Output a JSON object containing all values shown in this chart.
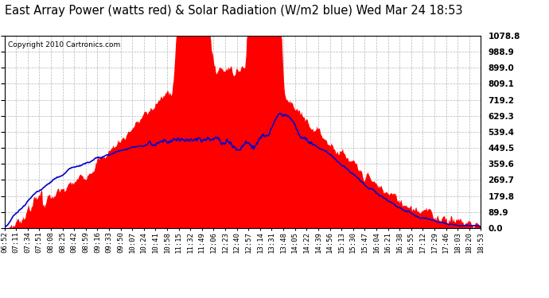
{
  "title": "East Array Power (watts red) & Solar Radiation (W/m2 blue) Wed Mar 24 18:53",
  "copyright": "Copyright 2010 Cartronics.com",
  "background_color": "#ffffff",
  "grid_color": "#aaaaaa",
  "y_max": 1078.8,
  "y_ticks": [
    0.0,
    89.9,
    179.8,
    269.7,
    359.6,
    449.5,
    539.4,
    629.3,
    719.2,
    809.1,
    899.0,
    988.9,
    1078.8
  ],
  "x_tick_labels": [
    "06:52",
    "07:11",
    "07:34",
    "07:51",
    "08:08",
    "08:25",
    "08:42",
    "08:59",
    "09:16",
    "09:33",
    "09:50",
    "10:07",
    "10:24",
    "10:41",
    "10:58",
    "11:15",
    "11:32",
    "11:49",
    "12:06",
    "12:23",
    "12:40",
    "12:57",
    "13:14",
    "13:31",
    "13:48",
    "14:05",
    "14:22",
    "14:39",
    "14:56",
    "15:13",
    "15:30",
    "15:47",
    "16:04",
    "16:21",
    "16:38",
    "16:55",
    "17:12",
    "17:29",
    "17:46",
    "18:03",
    "18:20",
    "18:53"
  ],
  "fill_color": "#ff0000",
  "line_color": "#0000cc",
  "title_fontsize": 10.5,
  "copyright_fontsize": 6.5,
  "ytick_fontsize": 7.5,
  "xtick_fontsize": 6.5
}
